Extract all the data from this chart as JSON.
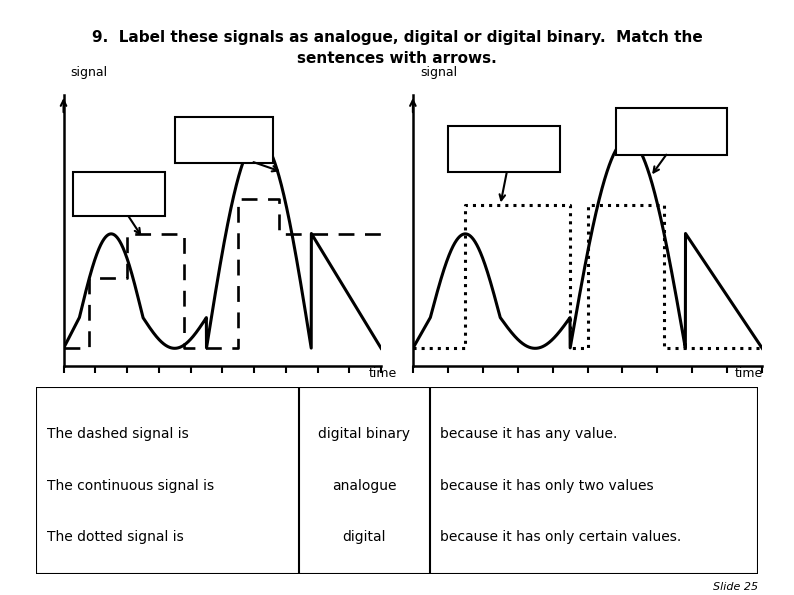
{
  "title_line1": "9.  Label these signals as analogue, digital or digital binary.  Match the",
  "title_line2": "sentences with arrows.",
  "title_bg": "#cce8f5",
  "background": "#ffffff",
  "left_ylabel": "signal",
  "right_ylabel": "signal",
  "xlabel": "time",
  "table_col1": [
    "The dashed signal is",
    "The continuous signal is",
    "The dotted signal is"
  ],
  "table_col2": [
    "digital binary",
    "analogue",
    "digital"
  ],
  "table_col3": [
    "because it has any value.",
    "because it has only two values",
    "because it has only certain values."
  ],
  "slide_label": "Slide 25",
  "title_fontsize": 11,
  "table_fontsize": 10,
  "signal_lw": 2.2
}
